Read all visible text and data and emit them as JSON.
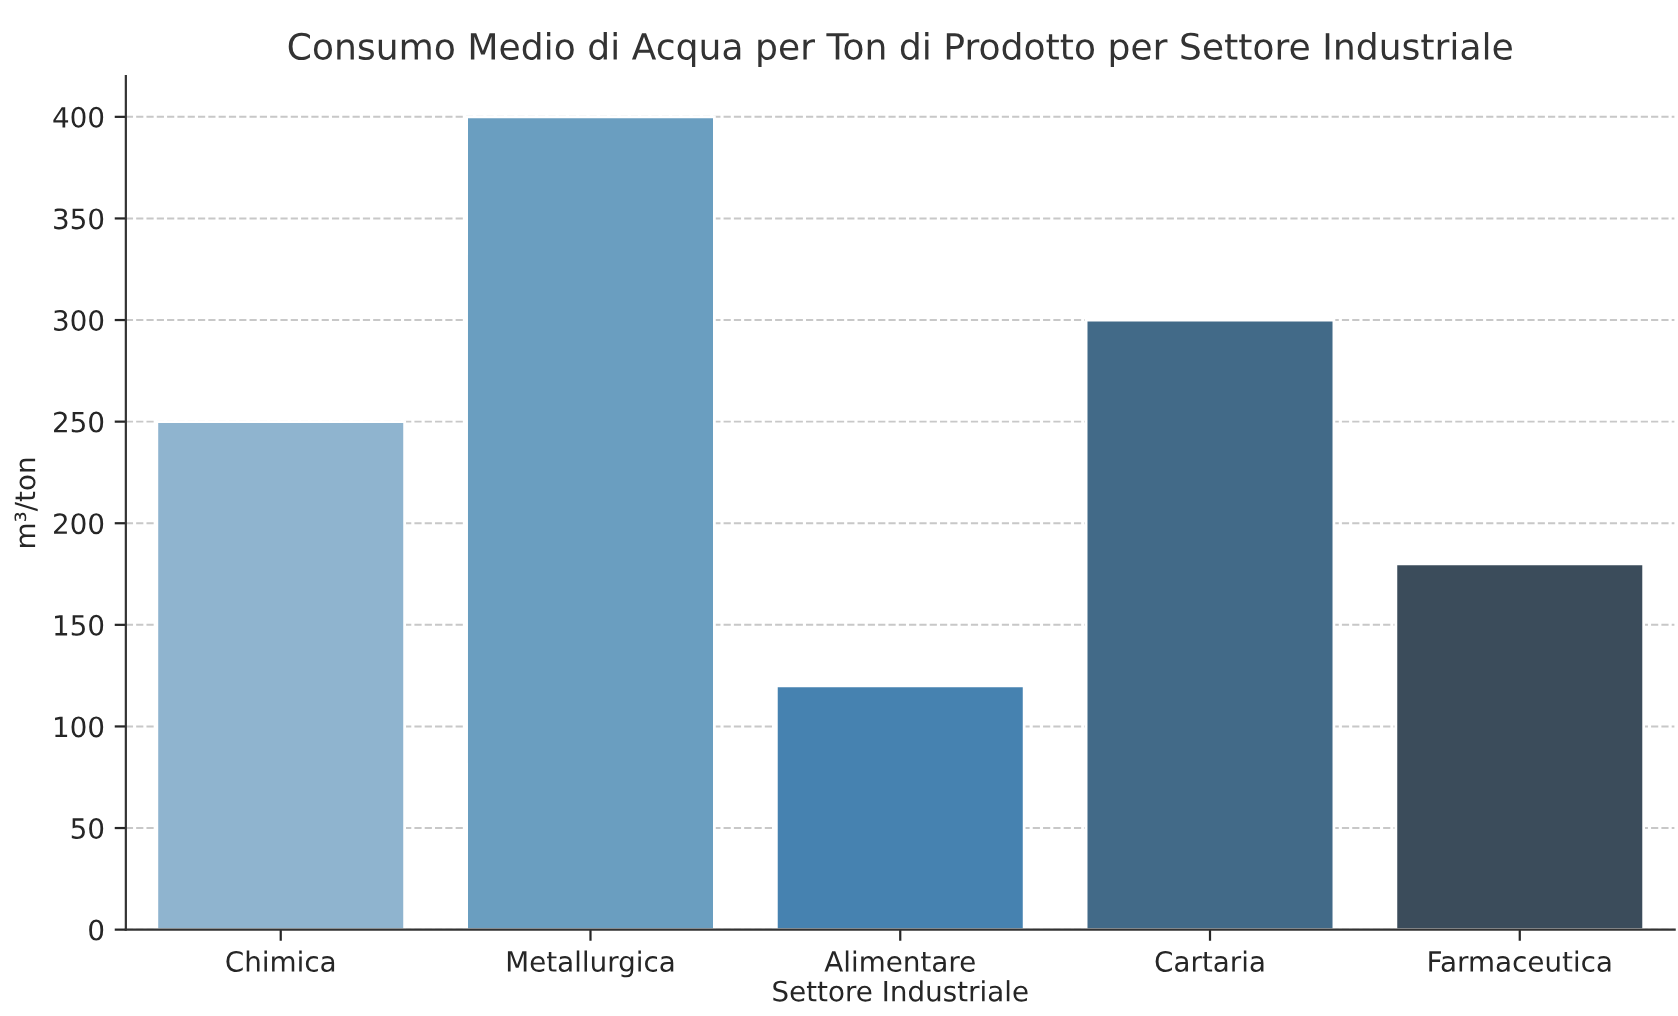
{
  "chart_data": {
    "type": "bar",
    "title": "Consumo Medio di Acqua per Ton di Prodotto per Settore Industriale",
    "xlabel": "Settore Industriale",
    "ylabel": "m³/ton",
    "categories": [
      "Chimica",
      "Metallurgica",
      "Alimentare",
      "Cartaria",
      "Farmaceutica"
    ],
    "values": [
      250,
      400,
      120,
      300,
      180
    ],
    "colors": [
      "#8fb4cf",
      "#6a9ec0",
      "#4682b0",
      "#426a88",
      "#3b4c5b"
    ],
    "ylim": [
      0,
      420
    ],
    "yticks": [
      0,
      50,
      100,
      150,
      200,
      250,
      300,
      350,
      400
    ],
    "grid": "y"
  }
}
